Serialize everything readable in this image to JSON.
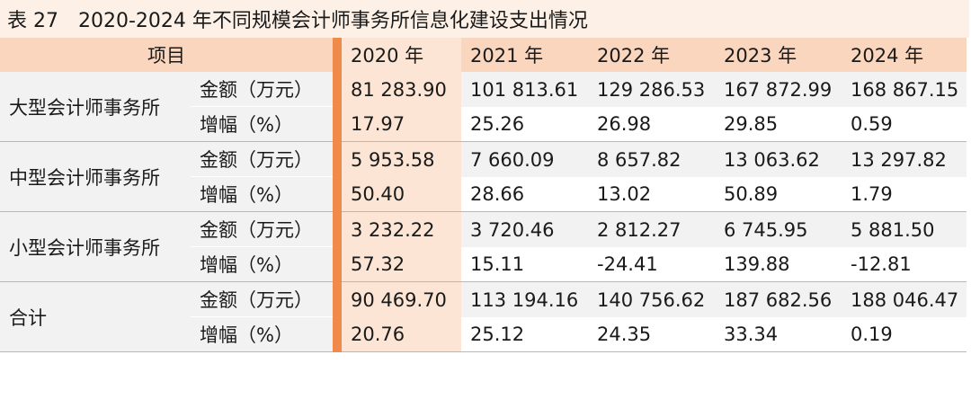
{
  "title": "表 27　2020-2024 年不同规模会计师事务所信息化建设支出情况",
  "header": {
    "item": "项目",
    "years": [
      "2020 年",
      "2021 年",
      "2022 年",
      "2023 年",
      "2024 年"
    ]
  },
  "groups": [
    {
      "name": "大型会计师事务所",
      "rows": [
        {
          "metric": "金额（万元）",
          "values": [
            "81 283.90",
            "101 813.61",
            "129 286.53",
            "167 872.99",
            "168 867.15"
          ]
        },
        {
          "metric": "增幅（%）",
          "values": [
            "17.97",
            "25.26",
            "26.98",
            "29.85",
            "0.59"
          ]
        }
      ]
    },
    {
      "name": "中型会计师事务所",
      "rows": [
        {
          "metric": "金额（万元）",
          "values": [
            "5 953.58",
            "7 660.09",
            "8 657.82",
            "13 063.62",
            "13 297.82"
          ]
        },
        {
          "metric": "增幅（%）",
          "values": [
            "50.40",
            "28.66",
            "13.02",
            "50.89",
            "1.79"
          ]
        }
      ]
    },
    {
      "name": "小型会计师事务所",
      "rows": [
        {
          "metric": "金额（万元）",
          "values": [
            "3 232.22",
            "3 720.46",
            "2 812.27",
            "6 745.95",
            "5 881.50"
          ]
        },
        {
          "metric": "增幅（%）",
          "values": [
            "57.32",
            "15.11",
            "-24.41",
            "139.88",
            "-12.81"
          ]
        }
      ]
    },
    {
      "name": "合计",
      "rows": [
        {
          "metric": "金额（万元）",
          "values": [
            "90 469.70",
            "113 194.16",
            "140 756.62",
            "187 682.56",
            "188 046.47"
          ]
        },
        {
          "metric": "增幅（%）",
          "values": [
            "20.76",
            "25.12",
            "24.35",
            "33.34",
            "0.19"
          ]
        }
      ]
    }
  ]
}
